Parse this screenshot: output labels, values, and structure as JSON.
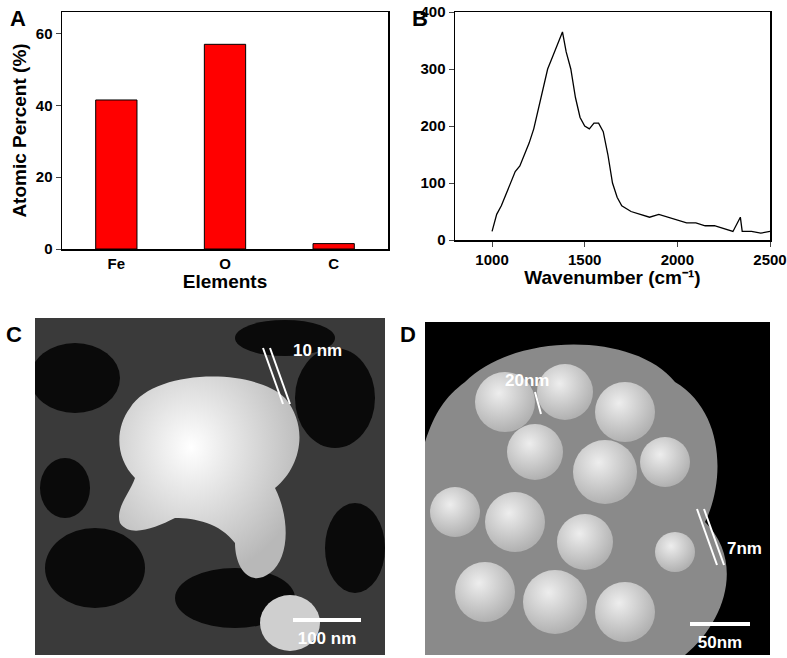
{
  "chart_data": [
    {
      "type": "bar",
      "annotations": [
        "A"
      ],
      "x_label": "Elements",
      "y_label": "Atomic Percent (%)",
      "categories": [
        "Fe",
        "O",
        "C"
      ],
      "values": [
        41.5,
        57,
        1.5
      ],
      "color": "#ff0000",
      "ylim": [
        0,
        66
      ],
      "yticks": [
        0,
        20,
        40,
        60
      ]
    },
    {
      "type": "line",
      "annotations": [
        "B"
      ],
      "x_label": "Wavenumber (cm⁻¹)",
      "x": [
        1000,
        1025,
        1050,
        1075,
        1100,
        1125,
        1150,
        1175,
        1200,
        1225,
        1250,
        1275,
        1300,
        1325,
        1350,
        1365,
        1380,
        1400,
        1425,
        1450,
        1475,
        1500,
        1525,
        1550,
        1575,
        1600,
        1625,
        1650,
        1675,
        1700,
        1750,
        1800,
        1850,
        1900,
        1950,
        2000,
        2050,
        2100,
        2150,
        2200,
        2250,
        2300,
        2340,
        2350,
        2400,
        2450,
        2500
      ],
      "values": [
        15,
        45,
        60,
        80,
        100,
        120,
        130,
        150,
        170,
        195,
        230,
        270,
        300,
        320,
        340,
        355,
        365,
        330,
        300,
        250,
        215,
        200,
        195,
        205,
        205,
        190,
        150,
        100,
        75,
        60,
        50,
        45,
        40,
        45,
        40,
        35,
        30,
        30,
        25,
        25,
        20,
        15,
        40,
        15,
        15,
        12,
        15
      ],
      "color": "#000000",
      "xlim": [
        800,
        2500
      ],
      "xticks": [
        1000,
        1500,
        2000,
        2500
      ],
      "ylim": [
        0,
        400
      ],
      "yticks": [
        0,
        100,
        200,
        300,
        400
      ]
    }
  ],
  "images": [
    {
      "panel": "C",
      "annotations": [
        "10 nm"
      ],
      "scale_bar": "100 nm"
    },
    {
      "panel": "D",
      "annotations": [
        "20nm",
        "7nm"
      ],
      "scale_bar": "50nm"
    }
  ]
}
